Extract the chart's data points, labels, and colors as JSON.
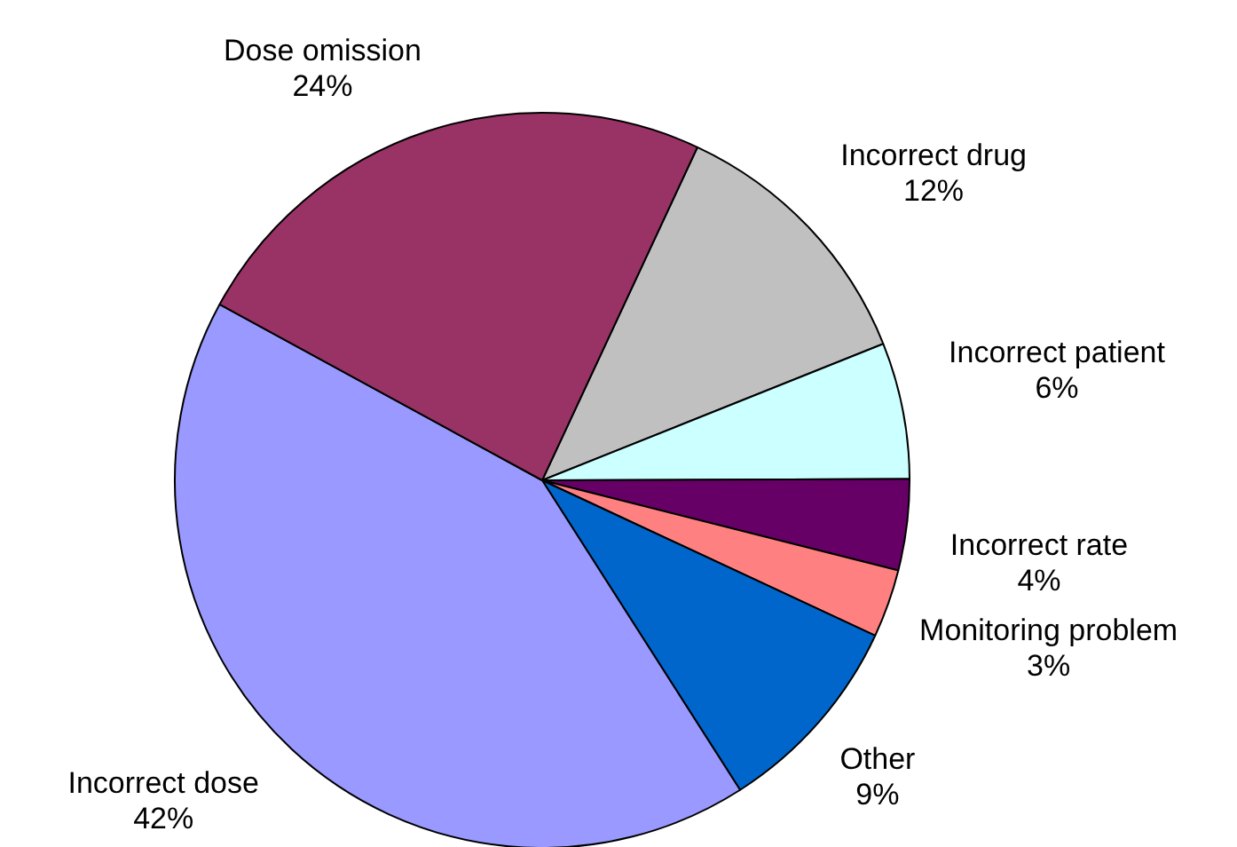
{
  "chart_data": {
    "type": "pie",
    "categories": [
      "Incorrect drug",
      "Incorrect patient",
      "Incorrect rate",
      "Monitoring problem",
      "Other",
      "Incorrect dose",
      "Dose omission"
    ],
    "values": [
      12,
      6,
      4,
      3,
      9,
      42,
      24
    ],
    "value_labels": [
      "12%",
      "6%",
      "4%",
      "3%",
      "9%",
      "42%",
      "24%"
    ],
    "colors": [
      "#c0c0c0",
      "#ccffff",
      "#660066",
      "#ff8080",
      "#0066cc",
      "#9999ff",
      "#993366"
    ]
  }
}
